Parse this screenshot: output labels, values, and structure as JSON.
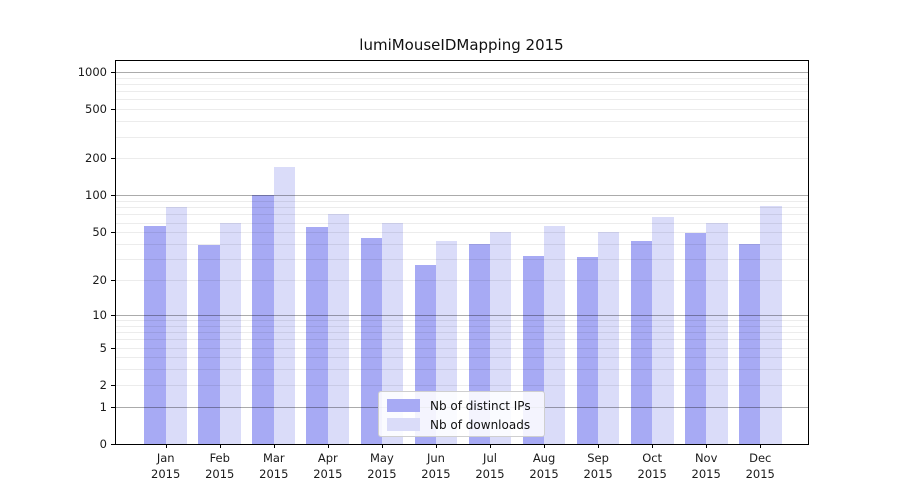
{
  "title": "lumiMouseIDMapping 2015",
  "chart_data": {
    "type": "bar",
    "title": "lumiMouseIDMapping 2015",
    "categories": [
      "Jan 2015",
      "Feb 2015",
      "Mar 2015",
      "Apr 2015",
      "May 2015",
      "Jun 2015",
      "Jul 2015",
      "Aug 2015",
      "Sep 2015",
      "Oct 2015",
      "Nov 2015",
      "Dec 2015"
    ],
    "series": [
      {
        "name": "Nb of distinct IPs",
        "color": "#a7aaf4",
        "values": [
          56,
          39,
          100,
          55,
          45,
          27,
          40,
          32,
          31,
          42,
          49,
          40
        ]
      },
      {
        "name": "Nb of downloads",
        "color": "#dadcf9",
        "values": [
          80,
          60,
          170,
          70,
          60,
          42,
          50,
          56,
          50,
          67,
          60,
          82
        ]
      }
    ],
    "xlabel": "",
    "ylabel": "",
    "yscale": "log1p",
    "ylim": [
      0,
      1236
    ],
    "yticks": [
      1000,
      500,
      200,
      100,
      50,
      20,
      10,
      5,
      2,
      1,
      0
    ],
    "ytick_labels": [
      "1000",
      "500",
      "200",
      "100",
      "50",
      "20",
      "10",
      "5",
      "2",
      "1",
      "0"
    ],
    "grid": true,
    "legend_position": "lower center"
  },
  "legend": {
    "entries": [
      {
        "label": "Nb of distinct IPs",
        "color": "#a7aaf4"
      },
      {
        "label": "Nb of downloads",
        "color": "#dadcf9"
      }
    ]
  }
}
